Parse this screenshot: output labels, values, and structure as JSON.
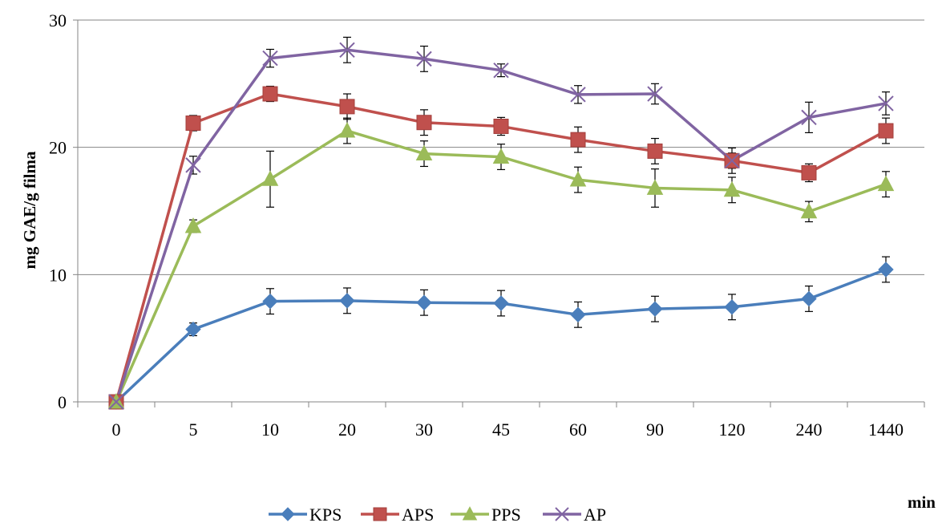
{
  "chart_data": {
    "type": "line",
    "title": "",
    "xlabel": "min",
    "ylabel": "mg GAE/g filma",
    "ylim": [
      0,
      30
    ],
    "yticks": [
      0,
      10,
      20,
      30
    ],
    "grid": "horizontal",
    "legend_position": "bottom",
    "categories": [
      "0",
      "5",
      "10",
      "20",
      "30",
      "45",
      "60",
      "90",
      "120",
      "240",
      "1440"
    ],
    "series": [
      {
        "name": "KPS",
        "color": "#4a7ebb",
        "marker": "diamond",
        "values": [
          0,
          5.7,
          7.9,
          7.95,
          7.8,
          7.75,
          6.85,
          7.3,
          7.45,
          8.1,
          10.4
        ],
        "error": [
          0,
          0.5,
          1.0,
          1.0,
          1.0,
          1.0,
          1.0,
          1.0,
          1.0,
          1.0,
          1.0
        ]
      },
      {
        "name": "APS",
        "color": "#c0504d",
        "marker": "square",
        "values": [
          0,
          21.9,
          24.2,
          23.2,
          21.95,
          21.65,
          20.6,
          19.7,
          18.95,
          18.0,
          21.3
        ],
        "error": [
          0,
          0.6,
          0.6,
          1.0,
          1.0,
          0.7,
          1.0,
          1.0,
          1.0,
          0.7,
          1.0
        ]
      },
      {
        "name": "PPS",
        "color": "#9bbb59",
        "marker": "triangle",
        "values": [
          0,
          13.8,
          17.5,
          21.3,
          19.5,
          19.25,
          17.45,
          16.8,
          16.65,
          14.95,
          17.1
        ],
        "error": [
          0,
          0.5,
          2.2,
          1.0,
          1.0,
          1.0,
          1.0,
          1.5,
          1.0,
          0.8,
          1.0
        ]
      },
      {
        "name": "AP",
        "color": "#8064a2",
        "marker": "x",
        "values": [
          0,
          18.6,
          27.0,
          27.65,
          26.95,
          26.05,
          24.15,
          24.2,
          18.95,
          22.35,
          23.45
        ],
        "error": [
          0,
          0.7,
          0.7,
          1.0,
          1.0,
          0.5,
          0.7,
          0.8,
          0.6,
          1.2,
          0.9
        ]
      }
    ]
  }
}
